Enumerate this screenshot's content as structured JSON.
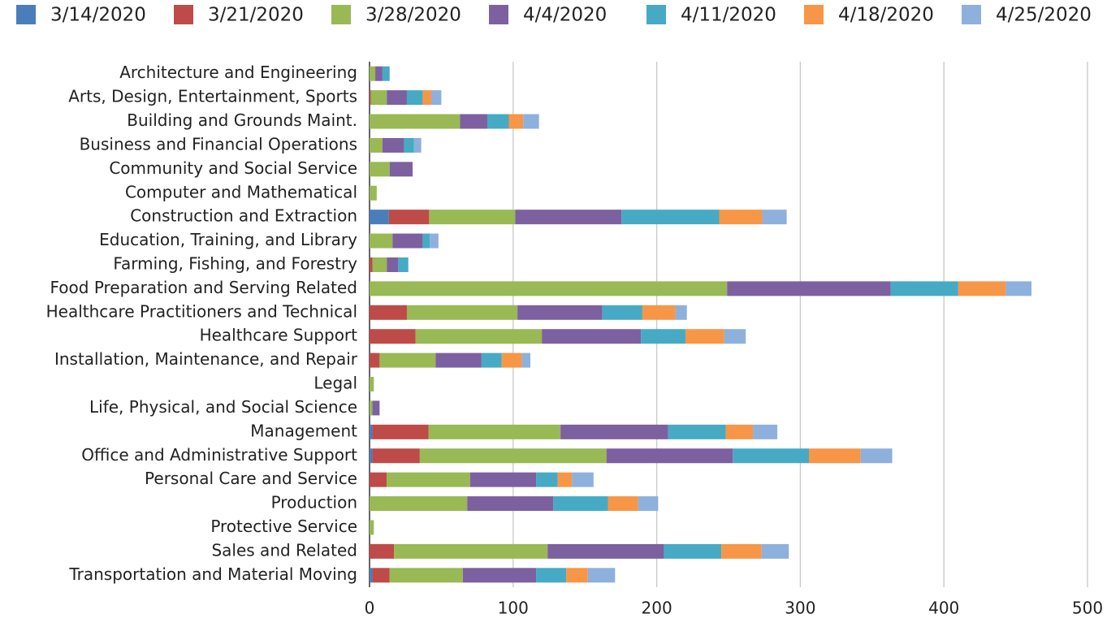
{
  "chart_data": {
    "type": "stacked-bar-horizontal",
    "categories": [
      "Architecture and Engineering",
      "Arts, Design, Entertainment, Sports",
      "Building and Grounds Maint.",
      "Business and Financial Operations",
      "Community and Social Service",
      "Computer and Mathematical",
      "Construction and Extraction",
      "Education, Training, and Library",
      "Farming, Fishing, and Forestry",
      "Food Preparation and Serving Related",
      "Healthcare Practitioners and Technical",
      "Healthcare Support",
      "Installation, Maintenance, and Repair",
      "Legal",
      "Life, Physical, and Social Science",
      "Management",
      "Office and Administrative Support",
      "Personal Care and Service",
      "Production",
      "Protective Service",
      "Sales and Related",
      "Transportation and Material Moving"
    ],
    "series": [
      {
        "name": "3/14/2020",
        "color": "#4a7ebb",
        "values": [
          0,
          0,
          0,
          0,
          0,
          0,
          13.5,
          0,
          0,
          0,
          0,
          0,
          0,
          0,
          0,
          2,
          2,
          0,
          0,
          0,
          0,
          2
        ]
      },
      {
        "name": "3/21/2020",
        "color": "#be4b48",
        "values": [
          0,
          1,
          0,
          0,
          0,
          0,
          28,
          0,
          2,
          0,
          26,
          32,
          7,
          0,
          0,
          39,
          33,
          12,
          0,
          0,
          17,
          12
        ]
      },
      {
        "name": "3/28/2020",
        "color": "#98b954",
        "values": [
          4,
          11,
          63,
          9,
          14,
          5,
          60,
          16,
          10,
          249,
          77,
          88,
          39,
          3,
          2,
          92,
          130,
          58,
          68,
          3,
          107,
          51
        ]
      },
      {
        "name": "4/4/2020",
        "color": "#7d60a0",
        "values": [
          5,
          14,
          19,
          15,
          16,
          0,
          74,
          21,
          8,
          114,
          59,
          69,
          32,
          0,
          5,
          75,
          88,
          46,
          60,
          0,
          81,
          51
        ]
      },
      {
        "name": "4/11/2020",
        "color": "#46aac5",
        "values": [
          5,
          11,
          15,
          7,
          0,
          0,
          68,
          5,
          7,
          47,
          28,
          31,
          14,
          0,
          0,
          40,
          53,
          15,
          38,
          0,
          40,
          21
        ]
      },
      {
        "name": "4/18/2020",
        "color": "#f79646",
        "values": [
          0,
          6,
          10,
          0,
          0,
          0,
          30,
          0,
          0,
          33,
          23,
          27,
          14,
          0,
          0,
          19,
          36,
          10,
          21,
          0,
          28,
          15
        ]
      },
      {
        "name": "4/25/2020",
        "color": "#8eb0dd",
        "values": [
          0,
          7,
          11,
          5,
          0,
          0,
          17,
          6,
          0,
          18,
          8,
          15,
          6,
          0,
          0,
          17,
          22,
          15,
          14,
          0,
          19,
          19
        ]
      }
    ],
    "xlim": [
      0,
      500
    ],
    "xticks": [
      0,
      100,
      200,
      300,
      400,
      500
    ],
    "grid": true
  }
}
